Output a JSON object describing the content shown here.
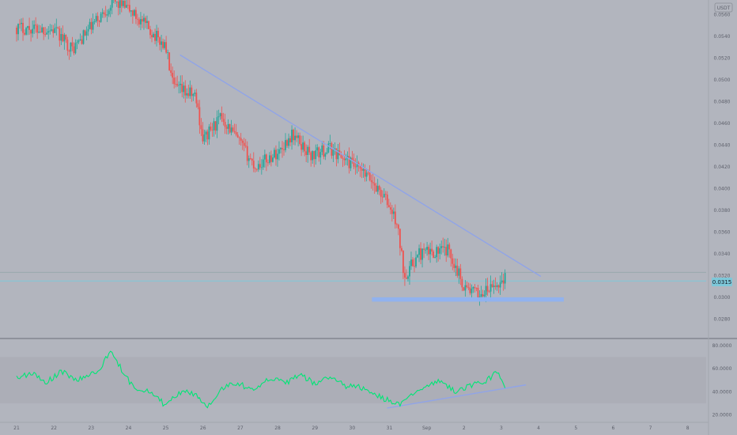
{
  "currency_badge": "USDT",
  "chart_data": [
    {
      "type": "candlestick",
      "title": "",
      "xlabel": "",
      "ylabel": "",
      "x_ticks": [
        "21",
        "22",
        "23",
        "24",
        "25",
        "26",
        "27",
        "28",
        "29",
        "30",
        "31",
        "Sep",
        "2",
        "3",
        "4",
        "5",
        "6",
        "7",
        "8"
      ],
      "y_ticks": [
        "0.0560",
        "0.0540",
        "0.0520",
        "0.0500",
        "0.0480",
        "0.0460",
        "0.0440",
        "0.0420",
        "0.0400",
        "0.0380",
        "0.0360",
        "0.0340",
        "0.0320",
        "0.0300",
        "0.0280"
      ],
      "ylim": [
        0.0265,
        0.0572
      ],
      "last_price": "0.0315",
      "grid": false,
      "candles": [],
      "annotations": {
        "descending_trendline": {
          "from": {
            "x": "25",
            "y": 0.0523
          },
          "to": {
            "x": "3",
            "y": 0.0317
          }
        },
        "support_zone": {
          "from_x": "30",
          "to_x": "3",
          "y_low": 0.0296,
          "y_high": 0.03
        },
        "reference_line_upper": 0.0323,
        "reference_line_price": 0.0315
      },
      "colors": {
        "up": "#26a69a",
        "down": "#ef5350",
        "trendline": "#90a4e8",
        "support_zone": "#8fb2f0",
        "price_line": "#7ec8d9",
        "background": "#b2b5be"
      }
    },
    {
      "type": "line",
      "title": "",
      "y_ticks": [
        "80.0000",
        "60.0000",
        "40.0000",
        "20.0000"
      ],
      "ylim": [
        15,
        84
      ],
      "bands": {
        "upper": 70,
        "lower": 30
      },
      "series": [
        {
          "color": "#00e676"
        }
      ],
      "annotations": {
        "rising_trendline": {
          "from": {
            "x": "31",
            "y": 26
          },
          "to": {
            "x": "4",
            "y": 46
          }
        }
      },
      "colors": {
        "band": "#a9acb4",
        "trendline": "#90a4e8"
      }
    }
  ]
}
